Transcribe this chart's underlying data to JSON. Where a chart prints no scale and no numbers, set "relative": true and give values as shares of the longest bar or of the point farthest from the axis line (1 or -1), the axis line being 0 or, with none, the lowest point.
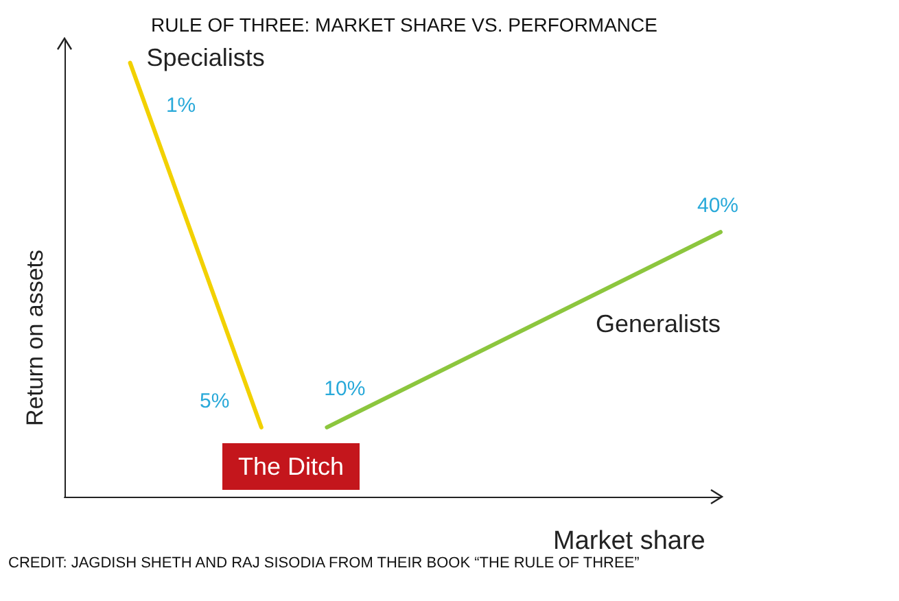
{
  "chart_data": {
    "type": "line",
    "relative": true,
    "title": "RULE OF THREE: MARKET SHARE VS. PERFORMANCE",
    "xlabel": "Market share",
    "ylabel": "Return on assets",
    "categories": [
      null,
      null,
      null,
      null,
      null,
      null,
      null,
      null,
      null,
      null,
      null,
      null,
      null,
      null,
      null,
      null,
      null,
      null,
      null,
      null,
      null
    ],
    "series": [
      {
        "name": "Specialists",
        "color": "#f2d100",
        "values": [
          null,
          null,
          1,
          null,
          null,
          null,
          0.16,
          null,
          null,
          null,
          null,
          null,
          null,
          null,
          null,
          null,
          null,
          null,
          null,
          null,
          null
        ]
      },
      {
        "name": "Generalists",
        "color": "#8cc63e",
        "values": [
          null,
          null,
          null,
          null,
          null,
          null,
          null,
          null,
          0.16,
          null,
          null,
          null,
          null,
          null,
          null,
          null,
          null,
          null,
          null,
          null,
          0.61
        ]
      }
    ],
    "annotations": [
      "1%",
      "5%",
      "10%",
      "40%",
      "The Ditch",
      "CREDIT: JAGDISH SHETH AND RAJ SISODIA FROM THEIR BOOK “THE RULE OF THREE”"
    ],
    "grid": false,
    "legend": false,
    "marker": "none",
    "line_style": "solid"
  }
}
